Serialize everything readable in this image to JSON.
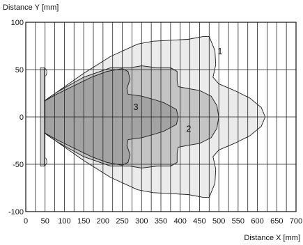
{
  "chart_data": {
    "type": "area",
    "title": "",
    "xlabel": "Distance X [mm]",
    "ylabel": "Distance Y [mm]",
    "xlim": [
      0,
      700
    ],
    "ylim": [
      -100,
      100
    ],
    "x_ticks": [
      0,
      50,
      100,
      150,
      200,
      250,
      300,
      350,
      400,
      450,
      500,
      550,
      600,
      650,
      700
    ],
    "y_ticks": [
      100,
      50,
      0,
      -50,
      -100
    ],
    "x_grid_step": 25,
    "y_grid_step": 50,
    "grid": true,
    "colors": {
      "zone1": "#ebebeb",
      "zone2": "#c4c4c4",
      "zone3": "#a3a3a3",
      "sensor": "#cfcfcf"
    },
    "series": [
      {
        "name": "1",
        "color_key": "zone1",
        "label_at": [
          503,
          70
        ],
        "points_upper": [
          [
            45,
            16
          ],
          [
            80,
            26
          ],
          [
            150,
            46
          ],
          [
            220,
            64
          ],
          [
            290,
            77
          ],
          [
            330,
            80
          ],
          [
            420,
            82
          ],
          [
            460,
            85
          ],
          [
            475,
            85
          ],
          [
            490,
            70
          ],
          [
            492,
            55
          ],
          [
            485,
            42
          ],
          [
            500,
            35
          ],
          [
            540,
            28
          ],
          [
            580,
            20
          ],
          [
            610,
            10
          ],
          [
            620,
            0
          ]
        ]
      },
      {
        "name": "2",
        "color_key": "zone2",
        "label_at": [
          422,
          -12
        ],
        "points_upper": [
          [
            45,
            16
          ],
          [
            80,
            26
          ],
          [
            150,
            42
          ],
          [
            220,
            52
          ],
          [
            270,
            52
          ],
          [
            300,
            54
          ],
          [
            340,
            52
          ],
          [
            375,
            52
          ],
          [
            392,
            48
          ],
          [
            392,
            38
          ],
          [
            395,
            32
          ],
          [
            420,
            30
          ],
          [
            450,
            28
          ],
          [
            480,
            22
          ],
          [
            495,
            12
          ],
          [
            500,
            0
          ]
        ]
      },
      {
        "name": "3",
        "color_key": "zone3",
        "label_at": [
          285,
          11
        ],
        "points_upper": [
          [
            45,
            16
          ],
          [
            80,
            24
          ],
          [
            120,
            32
          ],
          [
            170,
            42
          ],
          [
            210,
            48
          ],
          [
            250,
            51
          ],
          [
            265,
            48
          ],
          [
            270,
            40
          ],
          [
            262,
            30
          ],
          [
            265,
            24
          ],
          [
            300,
            22
          ],
          [
            335,
            18
          ],
          [
            358,
            15
          ],
          [
            390,
            8
          ],
          [
            395,
            0
          ]
        ]
      }
    ],
    "series_labels": [
      "1",
      "2",
      "3"
    ]
  }
}
